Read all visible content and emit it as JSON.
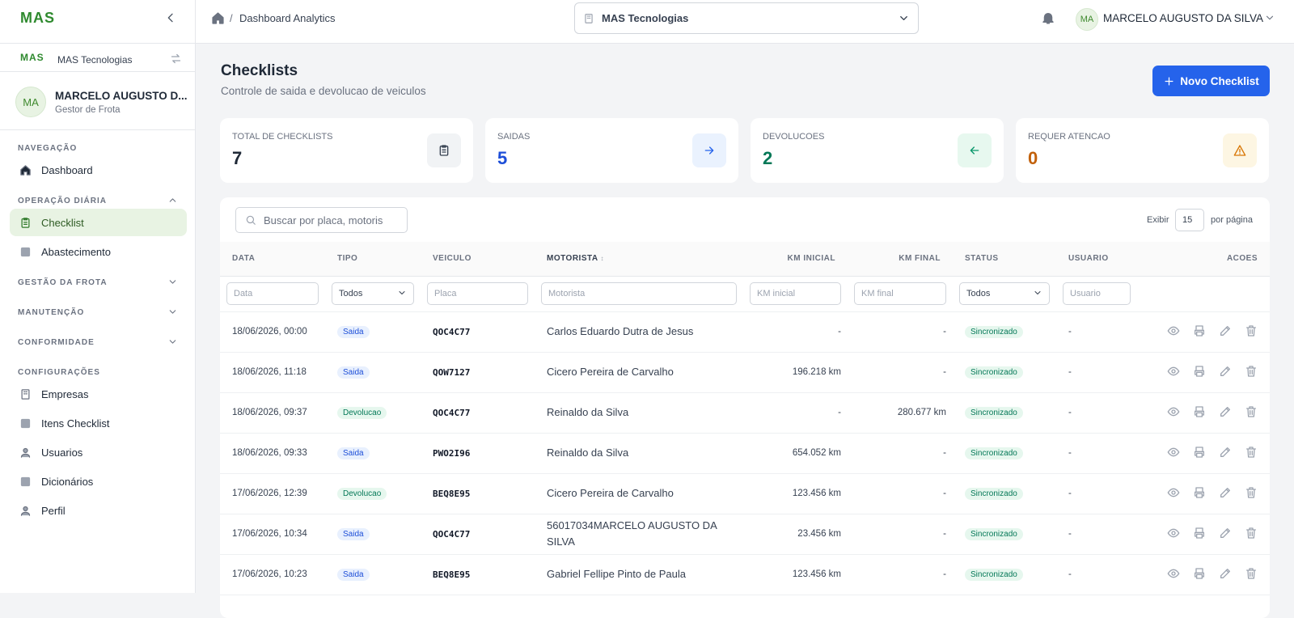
{
  "sidebar": {
    "logo": "MAS",
    "company_logo": "MAS",
    "company": "MAS Tecnologias",
    "user_initials": "MA",
    "user_name": "MARCELO AUGUSTO D...",
    "user_role": "Gestor de Frota",
    "sections": [
      {
        "title": "NAVEGAÇÃO",
        "items": [
          {
            "label": "Dashboard"
          }
        ]
      },
      {
        "title": "OPERAÇÃO DIÁRIA",
        "collapsible": true,
        "expanded": true,
        "items": [
          {
            "label": "Checklist",
            "active": true
          },
          {
            "label": "Abastecimento"
          }
        ]
      },
      {
        "title": "GESTÃO DA FROTA",
        "collapsible": true,
        "expanded": false
      },
      {
        "title": "MANUTENÇÃO",
        "collapsible": true,
        "expanded": false
      },
      {
        "title": "CONFORMIDADE",
        "collapsible": true,
        "expanded": false
      },
      {
        "title": "CONFIGURAÇÕES",
        "items": [
          {
            "label": "Empresas"
          },
          {
            "label": "Itens Checklist"
          },
          {
            "label": "Usuarios"
          },
          {
            "label": "Dicionários"
          },
          {
            "label": "Perfil"
          }
        ]
      }
    ]
  },
  "topbar": {
    "breadcrumb": "Dashboard Analytics",
    "company_select": "MAS Tecnologias",
    "user_initials": "MA",
    "user_name": "MARCELO AUGUSTO DA SILVA"
  },
  "header": {
    "title": "Checklists",
    "subtitle": "Controle de saida e devolucao de veiculos",
    "button": "Novo Checklist"
  },
  "stats": [
    {
      "label": "TOTAL DE CHECKLISTS",
      "value": 7,
      "color": "#1f2937",
      "icon_bg": "#f1f3f5",
      "icon_color": "#374151"
    },
    {
      "label": "SAIDAS",
      "value": 5,
      "color": "#1d4ed8",
      "icon_bg": "#eaf2fe",
      "icon_color": "#2563eb"
    },
    {
      "label": "DEVOLUCOES",
      "value": 2,
      "color": "#047857",
      "icon_bg": "#e7f8ef",
      "icon_color": "#059669"
    },
    {
      "label": "REQUER ATENCAO",
      "value": 0,
      "color": "#c2610c",
      "icon_bg": "#fdf6e3",
      "icon_color": "#d97706"
    }
  ],
  "table": {
    "search_placeholder": "Buscar por placa, motoris",
    "page_size_label": "Exibir",
    "page_size": 15,
    "page_size_suffix": "por página",
    "columns": [
      "DATA",
      "TIPO",
      "VEICULO",
      "MOTORISTA",
      "KM INICIAL",
      "KM FINAL",
      "STATUS",
      "USUARIO",
      "ACOES"
    ],
    "filters": [
      "Data",
      "Todos",
      "Placa",
      "Motorista",
      "KM inicial",
      "KM final",
      "Todos",
      "Usuario"
    ],
    "rows": [
      [
        "18/06/2026, 00:00",
        "Saida",
        "QOC4C77",
        "Carlos Eduardo Dutra de Jesus",
        "-",
        "-",
        "Sincronizado",
        "-"
      ],
      [
        "18/06/2026, 11:18",
        "Saida",
        "QOW7127",
        "Cicero Pereira de Carvalho",
        "196.218 km",
        "-",
        "Sincronizado",
        "-"
      ],
      [
        "18/06/2026, 09:37",
        "Devolucao",
        "QOC4C77",
        "Reinaldo da Silva",
        "-",
        "280.677 km",
        "Sincronizado",
        "-"
      ],
      [
        "18/06/2026, 09:33",
        "Saida",
        "PWO2I96",
        "Reinaldo da Silva",
        "654.052 km",
        "-",
        "Sincronizado",
        "-"
      ],
      [
        "17/06/2026, 12:39",
        "Devolucao",
        "BEQ8E95",
        "Cicero Pereira de Carvalho",
        "123.456 km",
        "-",
        "Sincronizado",
        "-"
      ],
      [
        "17/06/2026, 10:34",
        "Saida",
        "QOC4C77",
        "56017034MARCELO AUGUSTO DA SILVA",
        "23.456 km",
        "-",
        "Sincronizado",
        "-"
      ],
      [
        "17/06/2026, 10:23",
        "Saida",
        "BEQ8E95",
        "Gabriel Fellipe Pinto de Paula",
        "123.456 km",
        "-",
        "Sincronizado",
        "-"
      ]
    ]
  }
}
